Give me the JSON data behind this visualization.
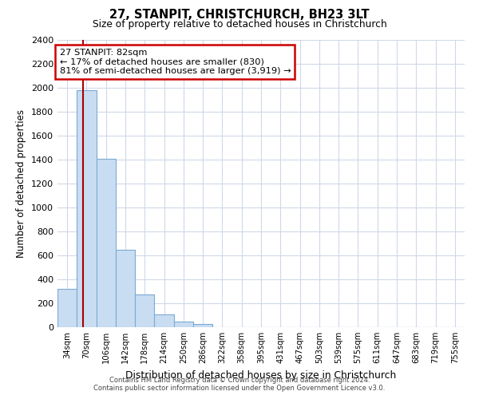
{
  "title": "27, STANPIT, CHRISTCHURCH, BH23 3LT",
  "subtitle": "Size of property relative to detached houses in Christchurch",
  "xlabel": "Distribution of detached houses by size in Christchurch",
  "ylabel": "Number of detached properties",
  "bar_labels": [
    "34sqm",
    "70sqm",
    "106sqm",
    "142sqm",
    "178sqm",
    "214sqm",
    "250sqm",
    "286sqm",
    "322sqm",
    "358sqm",
    "395sqm",
    "431sqm",
    "467sqm",
    "503sqm",
    "539sqm",
    "575sqm",
    "611sqm",
    "647sqm",
    "683sqm",
    "719sqm",
    "755sqm"
  ],
  "bar_values": [
    320,
    1980,
    1410,
    650,
    275,
    105,
    45,
    30,
    0,
    0,
    0,
    0,
    0,
    0,
    0,
    0,
    0,
    0,
    0,
    0,
    0
  ],
  "bar_color": "#c9ddf2",
  "bar_edge_color": "#7baad4",
  "vline_x": 1.33,
  "vline_color": "#aa0000",
  "ylim": [
    0,
    2400
  ],
  "yticks": [
    0,
    200,
    400,
    600,
    800,
    1000,
    1200,
    1400,
    1600,
    1800,
    2000,
    2200,
    2400
  ],
  "annotation_title": "27 STANPIT: 82sqm",
  "annotation_line1": "← 17% of detached houses are smaller (830)",
  "annotation_line2": "81% of semi-detached houses are larger (3,919) →",
  "annotation_box_color": "#ffffff",
  "annotation_box_edge": "#cc0000",
  "footer1": "Contains HM Land Registry data © Crown copyright and database right 2024.",
  "footer2": "Contains public sector information licensed under the Open Government Licence v3.0.",
  "bg_color": "#ffffff",
  "grid_color": "#d0d8e8"
}
